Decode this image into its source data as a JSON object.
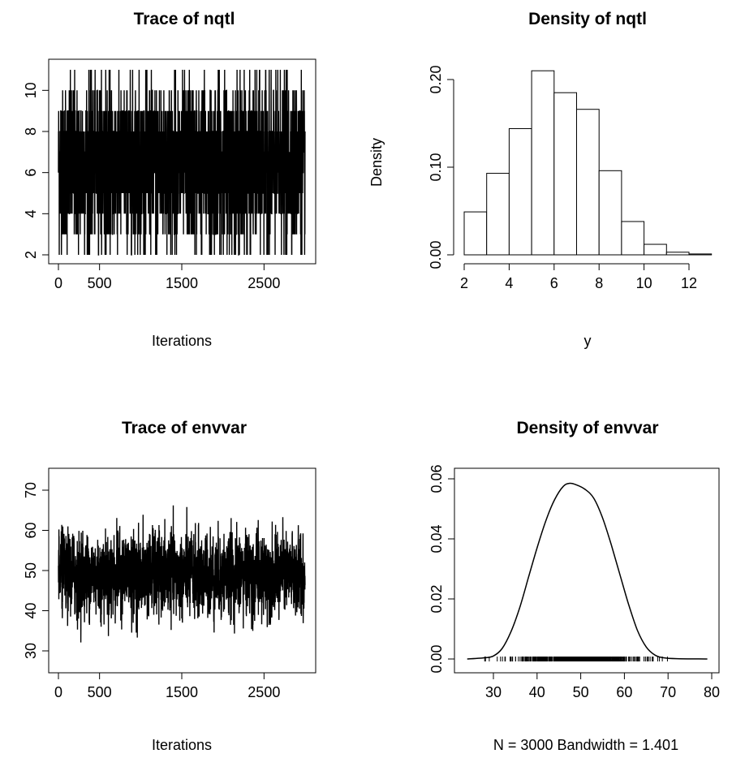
{
  "chart_data": [
    {
      "type": "line",
      "title": "Trace of nqtl",
      "xlabel": "Iterations",
      "ylabel": "",
      "xlim": [
        0,
        3000
      ],
      "ylim": [
        2,
        11
      ],
      "xticks": [
        0,
        500,
        1500,
        2500
      ],
      "yticks": [
        2,
        4,
        6,
        8,
        10
      ],
      "series": [
        {
          "values_note_free": true,
          "x_step": 1,
          "n": 3000,
          "values": []
        }
      ],
      "grid": false,
      "legend": "none"
    },
    {
      "type": "bar",
      "title": "Density of nqtl",
      "xlabel": "y",
      "ylabel": "Density",
      "xlim": [
        2,
        13
      ],
      "ylim": [
        0,
        0.21
      ],
      "xticks": [
        2,
        4,
        6,
        8,
        10,
        12
      ],
      "yticks": [
        "0.00",
        "0.10",
        "0.20"
      ],
      "bins": [
        [
          2,
          3
        ],
        [
          3,
          4
        ],
        [
          4,
          5
        ],
        [
          5,
          6
        ],
        [
          6,
          7
        ],
        [
          7,
          8
        ],
        [
          8,
          9
        ],
        [
          9,
          10
        ],
        [
          10,
          11
        ],
        [
          11,
          12
        ],
        [
          12,
          13
        ]
      ],
      "values": [
        0.049,
        0.093,
        0.144,
        0.21,
        0.185,
        0.166,
        0.096,
        0.038,
        0.012,
        0.003,
        0.001
      ],
      "grid": false,
      "legend": "none"
    },
    {
      "type": "line",
      "title": "Trace of envvar",
      "xlabel": "Iterations",
      "ylabel": "",
      "xlim": [
        0,
        3000
      ],
      "ylim": [
        28,
        74
      ],
      "xticks": [
        0,
        500,
        1500,
        2500
      ],
      "yticks": [
        30,
        40,
        50,
        60,
        70
      ],
      "series": [
        {
          "x_step": 1,
          "n": 3000,
          "values": []
        }
      ],
      "grid": false,
      "legend": "none"
    },
    {
      "type": "line",
      "title": "Density of envvar",
      "xlabel": "N = 3000   Bandwidth = 1.401",
      "ylabel": "",
      "xlim": [
        24,
        79
      ],
      "ylim": [
        0,
        0.06
      ],
      "xticks": [
        30,
        40,
        50,
        60,
        70,
        80
      ],
      "yticks": [
        "0.00",
        "0.02",
        "0.04",
        "0.06"
      ],
      "series": [
        {
          "x": [
            24,
            28,
            30,
            32,
            34,
            36,
            38,
            40,
            42,
            44,
            46,
            47.5,
            49,
            51,
            53,
            55,
            57,
            59,
            61,
            63,
            65,
            67,
            69,
            72,
            79
          ],
          "values": [
            0.0,
            0.0004,
            0.001,
            0.0035,
            0.009,
            0.017,
            0.027,
            0.037,
            0.046,
            0.053,
            0.0575,
            0.0585,
            0.058,
            0.0565,
            0.0535,
            0.047,
            0.038,
            0.028,
            0.018,
            0.0095,
            0.004,
            0.0013,
            0.0004,
            0.0001,
            0.0
          ]
        }
      ],
      "rug": true,
      "grid": false,
      "legend": "none"
    }
  ]
}
